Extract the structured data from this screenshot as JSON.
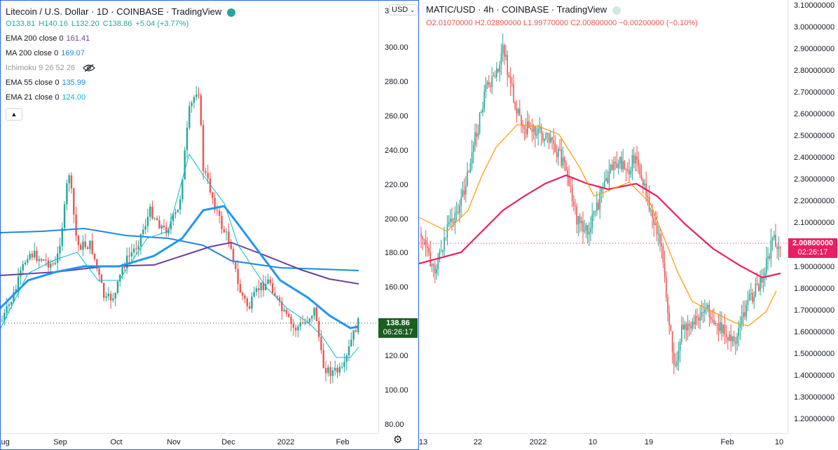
{
  "left_chart": {
    "title": "Litecoin / U.S. Dollar · 1D · COINBASE · TradingView",
    "ohlc": {
      "open": "O133.81",
      "high": "H140.16",
      "low": "L132.20",
      "close": "C138.86",
      "change": "+5.04 (+3.77%)"
    },
    "indicators": [
      {
        "label": "EMA 200 close 0",
        "value": "161.41",
        "color": "#6c3fa0"
      },
      {
        "label": "MA 200 close 0",
        "value": "169.07",
        "color": "#1e88e5"
      },
      {
        "label": "Ichimoku 9 26 52 26",
        "value": "",
        "color": "#9598a1",
        "hidden_icon": "eye-off-icon"
      },
      {
        "label": "EMA 55 close 0",
        "value": "135.99",
        "color": "#1e88e5"
      },
      {
        "label": "EMA 21 close 0",
        "value": "124.00",
        "color": "#00bcd4"
      }
    ],
    "currency": "USD",
    "price_axis": [
      "300.00",
      "280.00",
      "260.00",
      "240.00",
      "220.00",
      "200.00",
      "180.00",
      "160.00",
      "140.00",
      "120.00",
      "100.00",
      "80.00"
    ],
    "price_axis_top_partial": "3",
    "time_axis": [
      "Aug",
      "Sep",
      "Oct",
      "Nov",
      "Dec",
      "2022",
      "Feb"
    ],
    "last_price": "138.86",
    "countdown": "06:26:17",
    "last_price_color": "#1b5e20"
  },
  "right_chart": {
    "title": "MATIC/USD · 4h · COINBASE · TradingView",
    "ohlc": "O2.01070000  H2.02890000  L1.99770000  C2.00800000  −0.00200000 (−0.10%)",
    "price_axis": [
      "3.10000000",
      "3.00000000",
      "2.90000000",
      "2.80000000",
      "2.70000000",
      "2.60000000",
      "2.50000000",
      "2.40000000",
      "2.30000000",
      "2.20000000",
      "2.10000000",
      "1.90000000",
      "1.80000000",
      "1.70000000",
      "1.60000000",
      "1.50000000",
      "1.40000000",
      "1.30000000",
      "1.20000000"
    ],
    "time_axis": [
      "13",
      "22",
      "2022",
      "10",
      "19",
      "Feb",
      "10"
    ],
    "last_price": "2.00800000",
    "countdown": "02:26:17",
    "last_price_color": "#e91e63"
  },
  "colors": {
    "up": "#26a69a",
    "down": "#ef5350",
    "border": "#2962ff"
  }
}
